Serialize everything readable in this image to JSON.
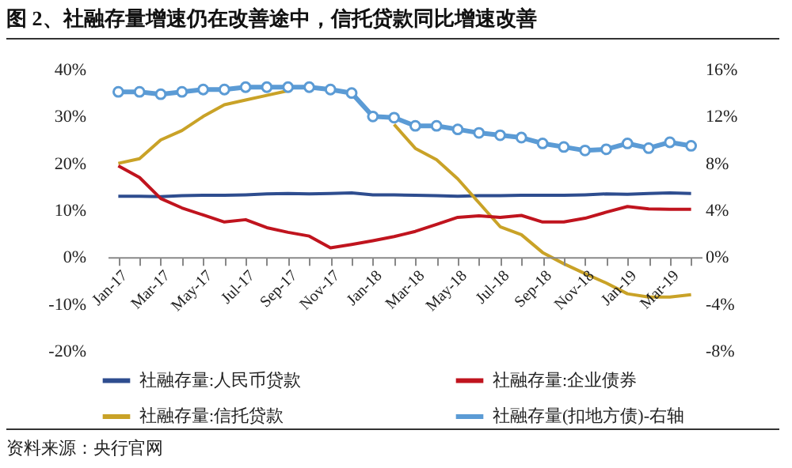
{
  "chart_data": {
    "type": "line",
    "title": "图 2、社融存量增速仍在改善途中，信托贷款同比增速改善",
    "categories": [
      "Jan-17",
      null,
      "Mar-17",
      null,
      "May-17",
      null,
      "Jul-17",
      null,
      "Sep-17",
      null,
      "Nov-17",
      null,
      "Jan-18",
      null,
      "Mar-18",
      null,
      "May-18",
      null,
      "Jul-18",
      null,
      "Sep-18",
      null,
      "Nov-18",
      null,
      "Jan-19",
      null,
      "Mar-19",
      null
    ],
    "series": [
      {
        "name": "社融存量:人民币贷款",
        "color": "#2e4d8f",
        "values": [
          13.0,
          13.0,
          12.9,
          13.1,
          13.2,
          13.2,
          13.3,
          13.5,
          13.6,
          13.5,
          13.6,
          13.7,
          13.3,
          13.3,
          13.2,
          13.1,
          13.0,
          13.1,
          13.1,
          13.2,
          13.2,
          13.2,
          13.3,
          13.5,
          13.4,
          13.6,
          13.7,
          13.6
        ]
      },
      {
        "name": "社融存量:信托贷款",
        "color": "#c9a227",
        "values": [
          20,
          21,
          25,
          27,
          30,
          32.5,
          33.5,
          34.5,
          35.5,
          null,
          null,
          null,
          null,
          28.3,
          23.2,
          20.8,
          16.7,
          11.6,
          6.5,
          4.8,
          1,
          -1.4,
          -3.5,
          -5.5,
          -7.8,
          -8.5,
          -8.5,
          -8
        ]
      },
      {
        "name": "社融存量:企业债券",
        "color": "#c0141e",
        "values": [
          19.5,
          17,
          12.5,
          10.5,
          9,
          7.5,
          8,
          6.3,
          5.3,
          4.5,
          2,
          2.7,
          3.5,
          4.4,
          5.5,
          7,
          8.5,
          8.8,
          8.5,
          8.9,
          7.5,
          7.5,
          8.3,
          9.6,
          10.8,
          10.3,
          10.2,
          10.2
        ]
      },
      {
        "name": "社融存量(扣地方债)-右轴",
        "color": "#5b9bd5",
        "axis": "y2",
        "marker": "circle",
        "values": [
          14.1,
          14.1,
          13.9,
          14.1,
          14.3,
          14.3,
          14.5,
          14.5,
          14.5,
          14.5,
          14.3,
          14.0,
          12.0,
          11.9,
          11.2,
          11.2,
          10.9,
          10.6,
          10.4,
          10.2,
          9.7,
          9.4,
          9.1,
          9.2,
          9.7,
          9.3,
          9.8,
          9.5
        ]
      }
    ],
    "ylim": [
      -20,
      40
    ],
    "yticks": [
      {
        "value": -20,
        "label": "-20%"
      },
      {
        "value": -10,
        "label": "-10%"
      },
      {
        "value": 0,
        "label": "0%"
      },
      {
        "value": 10,
        "label": "10%"
      },
      {
        "value": 20,
        "label": "20%"
      },
      {
        "value": 30,
        "label": "30%"
      },
      {
        "value": 40,
        "label": "40%"
      }
    ],
    "y2lim": [
      -8,
      16
    ],
    "y2ticks": [
      {
        "value": -8,
        "label": "-8%"
      },
      {
        "value": -4,
        "label": "-4%"
      },
      {
        "value": 0,
        "label": "0%"
      },
      {
        "value": 4,
        "label": "4%"
      },
      {
        "value": 8,
        "label": "8%"
      },
      {
        "value": 12,
        "label": "12%"
      },
      {
        "value": 16,
        "label": "16%"
      }
    ],
    "legend": "bottom",
    "grid": false,
    "line_style": "solid",
    "annotations": [
      "资料来源：央行官网"
    ]
  }
}
